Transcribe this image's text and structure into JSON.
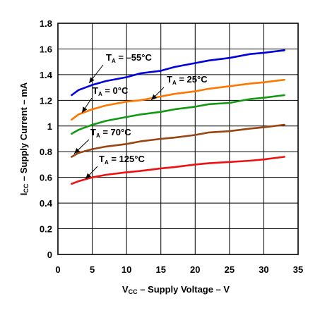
{
  "chart_data": {
    "type": "line",
    "title": "",
    "xlabel": {
      "main": "V",
      "sub": "CC",
      "rest": " – Supply Voltage – V"
    },
    "ylabel": {
      "main": "I",
      "sub": "CC",
      "rest": " – Supply Current – mA"
    },
    "xlim": [
      0,
      35
    ],
    "ylim": [
      0,
      1.8
    ],
    "x_ticks": [
      0,
      5,
      10,
      15,
      20,
      25,
      30,
      35
    ],
    "y_ticks": [
      0,
      0.2,
      0.4,
      0.6,
      0.8,
      1,
      1.2,
      1.4,
      1.6,
      1.8
    ],
    "x_tick_labels": [
      "0",
      "5",
      "10",
      "15",
      "20",
      "25",
      "30",
      "35"
    ],
    "y_tick_labels": [
      "0",
      "0.2",
      "0.4",
      "0.6",
      "0.8",
      "1",
      "1.2",
      "1.4",
      "1.6",
      "1.8"
    ],
    "grid": true,
    "series": [
      {
        "name": "T_A = –55°C",
        "color": "#0000dd",
        "x": [
          2,
          3,
          5,
          7,
          10,
          12,
          15,
          17,
          20,
          22,
          25,
          28,
          30,
          33
        ],
        "y": [
          1.24,
          1.28,
          1.32,
          1.35,
          1.38,
          1.41,
          1.43,
          1.46,
          1.49,
          1.51,
          1.53,
          1.56,
          1.57,
          1.59
        ],
        "label": {
          "prefix": "T",
          "sub": "A",
          "rest": " = –55°C"
        }
      },
      {
        "name": "T_A = 25°C",
        "color": "#ff7700",
        "x": [
          2,
          3,
          5,
          7,
          10,
          12,
          15,
          17,
          20,
          22,
          25,
          28,
          30,
          33
        ],
        "y": [
          1.05,
          1.09,
          1.13,
          1.16,
          1.19,
          1.2,
          1.23,
          1.25,
          1.27,
          1.29,
          1.31,
          1.33,
          1.34,
          1.36
        ],
        "label": {
          "prefix": "T",
          "sub": "A",
          "rest": " = 25°C"
        }
      },
      {
        "name": "T_A = 0°C",
        "color": "#119911",
        "x": [
          2,
          3,
          5,
          7,
          10,
          12,
          15,
          17,
          20,
          22,
          25,
          28,
          30,
          33
        ],
        "y": [
          0.94,
          0.97,
          1.01,
          1.04,
          1.07,
          1.09,
          1.11,
          1.13,
          1.15,
          1.17,
          1.18,
          1.21,
          1.22,
          1.24
        ],
        "label": {
          "prefix": "T",
          "sub": "A",
          "rest": " = 0°C"
        }
      },
      {
        "name": "T_A = 70°C",
        "color": "#994411",
        "x": [
          2,
          3,
          5,
          7,
          10,
          12,
          15,
          17,
          20,
          22,
          25,
          28,
          30,
          33
        ],
        "y": [
          0.76,
          0.79,
          0.82,
          0.84,
          0.86,
          0.88,
          0.9,
          0.91,
          0.93,
          0.95,
          0.96,
          0.98,
          0.99,
          1.01
        ],
        "label": {
          "prefix": "T",
          "sub": "A",
          "rest": " = 70°C"
        }
      },
      {
        "name": "T_A = 125°C",
        "color": "#ee1111",
        "x": [
          2,
          3,
          5,
          7,
          10,
          12,
          15,
          17,
          20,
          22,
          25,
          28,
          30,
          33
        ],
        "y": [
          0.55,
          0.57,
          0.6,
          0.62,
          0.64,
          0.65,
          0.67,
          0.68,
          0.7,
          0.71,
          0.72,
          0.73,
          0.74,
          0.76
        ],
        "label": {
          "prefix": "T",
          "sub": "A",
          "rest": " = 125°C"
        }
      }
    ]
  }
}
